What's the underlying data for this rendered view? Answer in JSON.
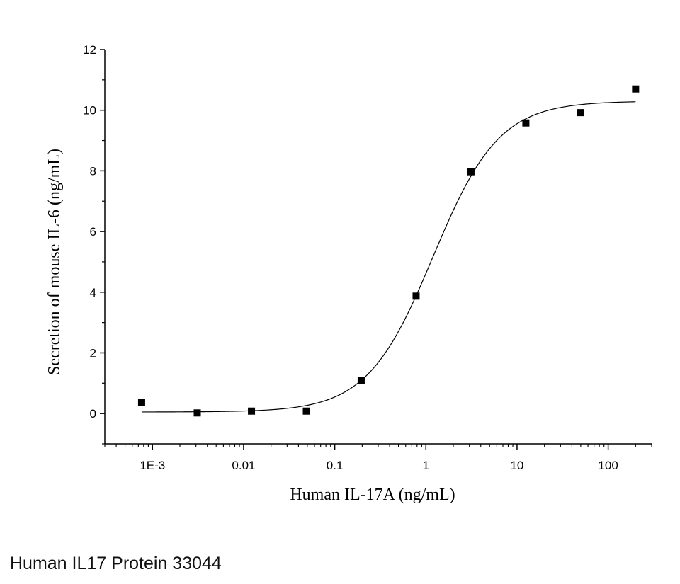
{
  "caption": "Human IL17 Protein 33044",
  "chart_data": {
    "type": "scatter",
    "xlabel": "Human IL-17A (ng/mL)",
    "ylabel": "Secretion of mouse IL-6 (ng/mL)",
    "xscale": "log",
    "xlim": [
      0.0003,
      300
    ],
    "ylim": [
      -1,
      12
    ],
    "yticks": [
      0,
      2,
      4,
      6,
      8,
      10,
      12
    ],
    "xticks": [
      {
        "value": 0.001,
        "label": "1E-3"
      },
      {
        "value": 0.01,
        "label": "0.01"
      },
      {
        "value": 0.1,
        "label": "0.1"
      },
      {
        "value": 1,
        "label": "1"
      },
      {
        "value": 10,
        "label": "10"
      },
      {
        "value": 100,
        "label": "100"
      }
    ],
    "series": [
      {
        "x": [
          0.00076,
          0.0031,
          0.0122,
          0.0488,
          0.195,
          0.781,
          3.125,
          12.5,
          50,
          200
        ],
        "y": [
          0.37,
          0.02,
          0.08,
          0.08,
          1.1,
          3.87,
          7.97,
          9.58,
          9.92,
          10.7
        ]
      }
    ],
    "fit": {
      "type": "logistic",
      "bottom": 0.05,
      "top": 10.3,
      "ec50": 1.2,
      "hill": 1.2,
      "x_range": [
        0.00076,
        200
      ]
    },
    "grid": false,
    "legend": "none",
    "marker_color": "#000000",
    "line_color": "#000000"
  }
}
